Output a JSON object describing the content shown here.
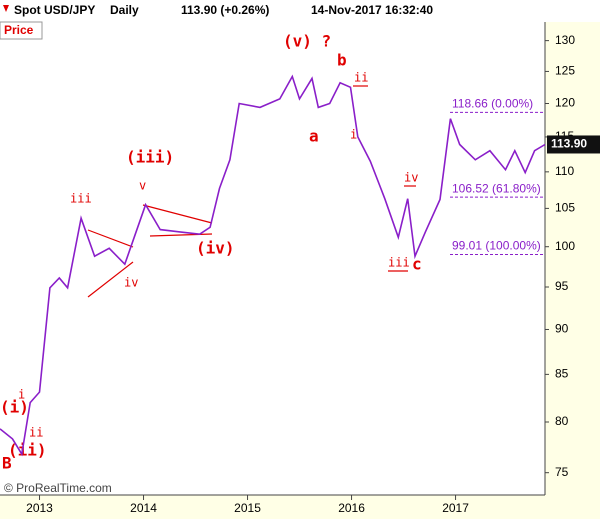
{
  "header": {
    "instrument": "Spot USD/JPY",
    "period": "Daily",
    "quote": "113.90 (+0.26%)",
    "timestamp": "14-Nov-2017 16:32:40"
  },
  "chart_data": {
    "type": "line",
    "y_label": "Price",
    "footer": "© ProRealTime.com",
    "x": [
      2012.62,
      2012.74,
      2012.83,
      2012.91,
      2013.0,
      2013.1,
      2013.19,
      2013.27,
      2013.4,
      2013.53,
      2013.67,
      2013.82,
      2013.91,
      2014.02,
      2014.16,
      2014.35,
      2014.54,
      2014.64,
      2014.73,
      2014.83,
      2014.92,
      2015.12,
      2015.31,
      2015.43,
      2015.5,
      2015.62,
      2015.68,
      2015.79,
      2015.89,
      2015.99,
      2016.06,
      2016.18,
      2016.32,
      2016.45,
      2016.54,
      2016.61,
      2016.71,
      2016.85,
      2016.95,
      2017.04,
      2017.19,
      2017.33,
      2017.48,
      2017.57,
      2017.67,
      2017.76,
      2017.86
    ],
    "series": [
      {
        "name": "USD/JPY",
        "color": "#8a1fc9",
        "values": [
          79.3,
          78.3,
          76.8,
          82.0,
          83.1,
          94.9,
          96.1,
          94.9,
          103.7,
          98.8,
          99.8,
          97.8,
          101.2,
          105.5,
          102.2,
          101.9,
          101.6,
          102.5,
          107.7,
          111.7,
          120.0,
          119.4,
          120.7,
          124.2,
          120.7,
          123.9,
          119.4,
          120.0,
          123.2,
          122.5,
          115.0,
          111.5,
          106.3,
          101.2,
          106.3,
          98.8,
          101.9,
          106.2,
          117.7,
          113.9,
          111.7,
          113.0,
          110.3,
          113.0,
          109.9,
          113.0,
          113.9
        ]
      }
    ],
    "last_value": {
      "value": 113.9,
      "label": "113.90"
    },
    "levels": [
      {
        "value": 118.66,
        "label": "118.66 (0.00%)"
      },
      {
        "value": 106.52,
        "label": "106.52 (61.80%)"
      },
      {
        "value": 99.01,
        "label": "99.01 (100.00%)"
      }
    ],
    "xlim": [
      2012.62,
      2017.86
    ],
    "xticks": [
      2013,
      2014,
      2015,
      2016,
      2017
    ],
    "ylim": [
      72.9,
      136.9
    ],
    "yticks": [
      75,
      80,
      85,
      90,
      95,
      100,
      105,
      110,
      115,
      120,
      125,
      130
    ],
    "log_scale": true,
    "annotations": [
      "(v) ?",
      "b",
      "ii",
      "a",
      "i",
      "(iii)",
      "v",
      "iii",
      "iv",
      "(iv)",
      "iv",
      "iii",
      "c",
      "(i)",
      "i",
      "ii",
      "(ii)",
      "B"
    ]
  }
}
